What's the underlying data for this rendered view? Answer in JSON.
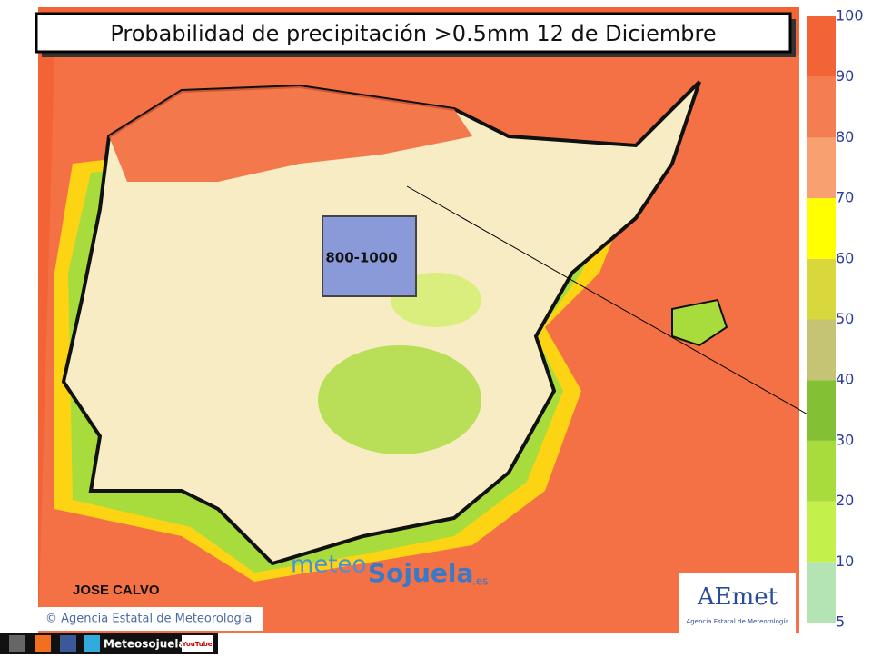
{
  "header": {
    "title": "Probabilidad de precipitación >0.5mm 12 de Diciembre"
  },
  "legend": {
    "levels": [
      5,
      10,
      20,
      30,
      40,
      50,
      60,
      70,
      80,
      90,
      100
    ],
    "colors": [
      "#b4e4b4",
      "#c4f04c",
      "#a8dc3c",
      "#84c034",
      "#c4c474",
      "#d8d83c",
      "#ffff00",
      "#f8a070",
      "#f47e52",
      "#f26436"
    ]
  },
  "map": {
    "snow_level": "800-1000",
    "author": "JOSE CALVO",
    "copyright": "© Agencia Estatal de Meteorología"
  },
  "logos": {
    "meteo": "meteo",
    "sojuela": "Sojuela",
    "domain": ".es",
    "aemet": "AEmet",
    "aemet_full": "Agencia Estatal de Meteorología"
  },
  "footer": {
    "brand": "Meteosojuela",
    "youtube": "YouTube"
  }
}
